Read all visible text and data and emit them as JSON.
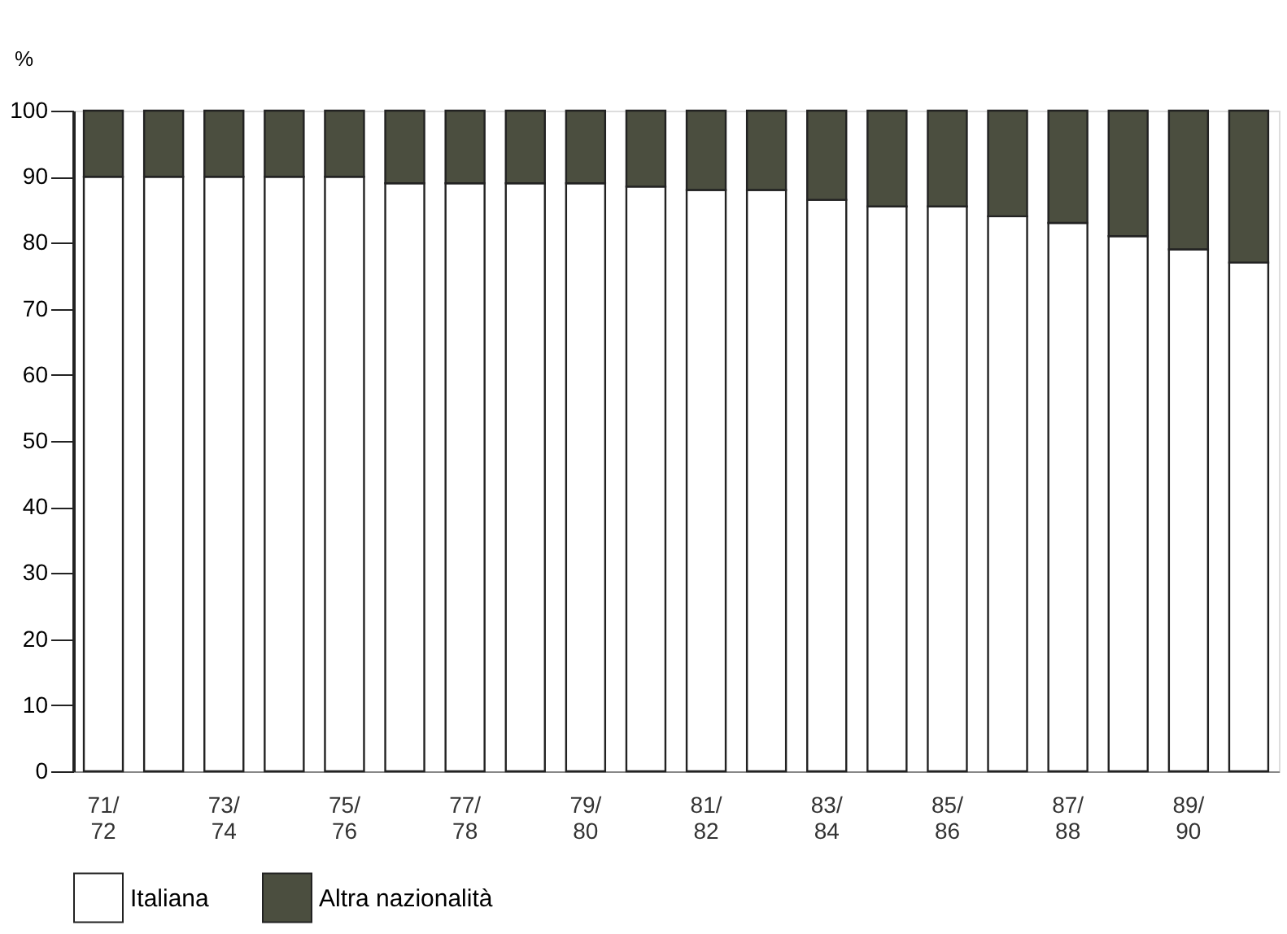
{
  "chart_data": {
    "type": "bar",
    "stacked": true,
    "ylabel": "%",
    "categories": [
      "71/\n72",
      null,
      "73/\n74",
      null,
      "75/\n76",
      null,
      "77/\n78",
      null,
      "79/\n80",
      null,
      "81/\n82",
      null,
      "83/\n84",
      null,
      "85/\n86",
      null,
      "87/\n88",
      null,
      "89/\n90",
      null
    ],
    "series": [
      {
        "name": "Italiana",
        "color": "#ffffff",
        "values": [
          90,
          90,
          90,
          90,
          90,
          89,
          89,
          89,
          89,
          88.5,
          88,
          88,
          86.5,
          85.5,
          85.5,
          84,
          83,
          81,
          79,
          77
        ]
      },
      {
        "name": "Altra nazionalità",
        "color": "#4b4e3f",
        "values": [
          10,
          10,
          10,
          10,
          10,
          11,
          11,
          11,
          11,
          11.5,
          12,
          12,
          13.5,
          14.5,
          14.5,
          16,
          17,
          19,
          21,
          23
        ]
      }
    ],
    "ylim": [
      0,
      100
    ],
    "yticks": [
      0,
      10,
      20,
      30,
      40,
      50,
      60,
      70,
      80,
      90,
      100
    ],
    "grid": false,
    "legend": "bottom"
  }
}
